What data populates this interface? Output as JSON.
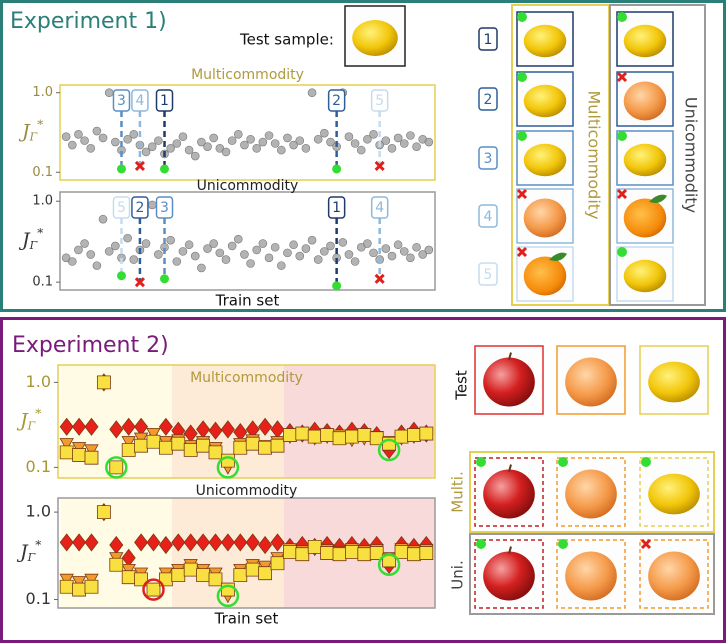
{
  "experiment1": {
    "title": "Experiment 1)",
    "test_label": "Test sample:",
    "ranks": [
      "1",
      "2",
      "3",
      "4",
      "5"
    ],
    "multi_label": "Multicommodity",
    "uni_label": "Unicommodity"
  },
  "experiment2": {
    "title": "Experiment 2)",
    "row_labels": [
      "Test",
      "Multi.",
      "Uni."
    ]
  },
  "chart_data": [
    {
      "type": "scatter",
      "title": "Multicommodity",
      "ylabel": {
        "main": "J",
        "sub": "Γ",
        "sup": "*"
      },
      "log_y": true,
      "xlim": [
        0,
        61
      ],
      "ylim": [
        0.08,
        1.25
      ],
      "yticks": [
        0.1,
        {
          "value": 1,
          "label": "1.0"
        }
      ],
      "frame_color": "#e6cf52",
      "title_color": "#b09a3c",
      "tick_color": "#9a8a40",
      "color": "#9a9a9a",
      "values": [
        0.28,
        0.22,
        0.3,
        0.25,
        0.2,
        0.33,
        0.27,
        1.0,
        0.24,
        0.19,
        0.26,
        0.3,
        0.22,
        0.18,
        0.21,
        0.25,
        0.17,
        0.2,
        0.23,
        0.28,
        0.19,
        0.16,
        0.24,
        0.21,
        0.27,
        0.2,
        0.18,
        0.25,
        0.3,
        0.22,
        0.26,
        0.2,
        0.24,
        0.29,
        0.23,
        0.19,
        0.27,
        0.22,
        0.25,
        0.2,
        1.0,
        0.26,
        0.31,
        0.24,
        0.21,
        1.0,
        0.28,
        0.23,
        0.19,
        0.26,
        0.3,
        0.22,
        0.25,
        0.2,
        0.27,
        0.23,
        0.29,
        0.21,
        0.26,
        0.24
      ],
      "annotations": [
        {
          "label": "3",
          "x": 10,
          "value": 0.11,
          "color": "#5a8fc4",
          "marker": "circle",
          "marker_color": "#33dd33"
        },
        {
          "label": "4",
          "x": 13,
          "value": 0.12,
          "color": "#8fb8dc",
          "marker": "cross",
          "marker_color": "#e0201a"
        },
        {
          "label": "1",
          "x": 17,
          "value": 0.11,
          "color": "#1f3a6b",
          "marker": "circle",
          "marker_color": "#33dd33"
        },
        {
          "label": "2",
          "x": 45,
          "value": 0.11,
          "color": "#2f5f9a",
          "marker": "circle",
          "marker_color": "#33dd33"
        },
        {
          "label": "5",
          "x": 52,
          "value": 0.12,
          "color": "#c5dcef",
          "marker": "cross",
          "marker_color": "#e0201a"
        }
      ]
    },
    {
      "type": "scatter",
      "title": "Unicommodity",
      "xlabel": "Train set",
      "ylabel": {
        "main": "J",
        "sub": "Γ",
        "sup": "*"
      },
      "log_y": true,
      "xlim": [
        0,
        61
      ],
      "ylim": [
        0.08,
        1.3
      ],
      "yticks": [
        0.1,
        {
          "value": 1,
          "label": "1.0"
        }
      ],
      "frame_color": "#9a9a9a",
      "title_color": "#222222",
      "tick_color": "#333333",
      "color": "#9a9a9a",
      "values": [
        0.2,
        0.18,
        0.25,
        0.3,
        0.22,
        0.16,
        0.6,
        0.24,
        0.28,
        0.2,
        0.35,
        0.19,
        0.25,
        0.3,
        0.9,
        0.22,
        0.27,
        0.33,
        0.18,
        0.24,
        0.29,
        0.21,
        0.15,
        0.26,
        0.3,
        0.23,
        0.19,
        0.28,
        0.34,
        0.22,
        0.17,
        0.25,
        0.3,
        0.2,
        0.27,
        0.16,
        0.23,
        0.29,
        0.21,
        0.26,
        0.33,
        0.19,
        0.24,
        0.28,
        0.2,
        0.31,
        0.22,
        0.18,
        0.27,
        0.3,
        0.23,
        0.19,
        0.26,
        0.21,
        0.29,
        0.24,
        0.2,
        0.27,
        0.22,
        0.25
      ],
      "annotations": [
        {
          "label": "5",
          "x": 10,
          "value": 0.12,
          "color": "#c5dcef",
          "marker": "circle",
          "marker_color": "#33dd33"
        },
        {
          "label": "2",
          "x": 13,
          "value": 0.1,
          "color": "#2f5f9a",
          "marker": "cross",
          "marker_color": "#e0201a"
        },
        {
          "label": "3",
          "x": 17,
          "value": 0.11,
          "color": "#5a8fc4",
          "marker": "circle",
          "marker_color": "#33dd33"
        },
        {
          "label": "1",
          "x": 45,
          "value": 0.09,
          "color": "#1f3a6b",
          "marker": "circle",
          "marker_color": "#33dd33"
        },
        {
          "label": "4",
          "x": 52,
          "value": 0.11,
          "color": "#8fb8dc",
          "marker": "cross",
          "marker_color": "#e0201a"
        }
      ]
    },
    {
      "type": "scatter",
      "title": "Multicommodity",
      "ylabel": {
        "main": "J",
        "sub": "Γ",
        "sup": "*"
      },
      "log_y": true,
      "xlim": [
        0.3,
        30.7
      ],
      "ylim": [
        0.075,
        1.6
      ],
      "yticks": [
        0.1,
        {
          "value": 1,
          "label": "1.0"
        }
      ],
      "frame_color": "#e6cf52",
      "title_color": "#b09a3c",
      "tick_color": "#a89830",
      "regions": [
        {
          "from": 0.5,
          "to": 9.5,
          "color": "#fffbe4"
        },
        {
          "from": 9.5,
          "to": 18.5,
          "color": "#fdebd8"
        },
        {
          "from": 18.5,
          "to": 30.7,
          "color": "#f9dada"
        }
      ],
      "series": [
        {
          "marker": "diamond",
          "color": "#e8201a",
          "values": [
            0.3,
            0.3,
            0.3,
            1.0,
            0.28,
            0.3,
            0.3,
            0.22,
            0.3,
            0.27,
            0.25,
            0.28,
            0.27,
            0.28,
            0.26,
            0.28,
            0.3,
            0.28,
            0.26,
            0.25,
            0.27,
            0.26,
            0.25,
            0.27,
            0.26,
            0.24,
            0.16,
            0.25,
            0.27,
            0.25
          ]
        },
        {
          "marker": "triangle",
          "color": "#f39a2c",
          "values": [
            0.19,
            0.17,
            0.16,
            1.0,
            0.1,
            0.2,
            0.22,
            0.25,
            0.2,
            0.21,
            0.18,
            0.2,
            0.17,
            0.1,
            0.19,
            0.21,
            0.18,
            0.2,
            0.23,
            0.24,
            0.22,
            0.23,
            0.24,
            0.21,
            0.22,
            0.23,
            0.2,
            0.22,
            0.23,
            0.24
          ]
        },
        {
          "marker": "square",
          "color": "#f7e040",
          "values": [
            0.15,
            0.14,
            0.13,
            1.0,
            0.1,
            0.16,
            0.18,
            0.2,
            0.17,
            0.19,
            0.16,
            0.18,
            0.15,
            0.12,
            0.17,
            0.19,
            0.17,
            0.18,
            0.24,
            0.25,
            0.23,
            0.24,
            0.22,
            0.23,
            0.24,
            0.22,
            0.19,
            0.23,
            0.24,
            0.25
          ]
        }
      ],
      "highlights": [
        {
          "series": 2,
          "index": 4,
          "color": "#33dd33"
        },
        {
          "series": 1,
          "index": 13,
          "color": "#33dd33"
        },
        {
          "series": 0,
          "index": 26,
          "color": "#33dd33"
        }
      ]
    },
    {
      "type": "scatter",
      "title": "Unicommodity",
      "xlabel": "Train set",
      "ylabel": {
        "main": "J",
        "sub": "Γ",
        "sup": "*"
      },
      "log_y": true,
      "xlim": [
        0.3,
        30.7
      ],
      "ylim": [
        0.08,
        1.45
      ],
      "yticks": [
        0.1,
        {
          "value": 1,
          "label": "1.0"
        }
      ],
      "frame_color": "#9a9a9a",
      "title_color": "#222222",
      "tick_color": "#333333",
      "regions": [
        {
          "from": 0.5,
          "to": 9.5,
          "color": "#fffbe4"
        },
        {
          "from": 9.5,
          "to": 18.5,
          "color": "#fdebd8"
        },
        {
          "from": 18.5,
          "to": 30.7,
          "color": "#f9dada"
        }
      ],
      "series": [
        {
          "marker": "diamond",
          "color": "#e8201a",
          "values": [
            0.45,
            0.45,
            0.45,
            1.0,
            0.42,
            0.3,
            0.45,
            0.45,
            0.42,
            0.45,
            0.45,
            0.45,
            0.45,
            0.45,
            0.45,
            0.45,
            0.42,
            0.45,
            0.4,
            0.42,
            0.4,
            0.42,
            0.4,
            0.42,
            0.4,
            0.42,
            0.25,
            0.42,
            0.4,
            0.42
          ]
        },
        {
          "marker": "triangle",
          "color": "#f39a2c",
          "values": [
            0.17,
            0.16,
            0.17,
            1.0,
            0.3,
            0.22,
            0.2,
            0.13,
            0.2,
            0.22,
            0.25,
            0.22,
            0.2,
            0.11,
            0.22,
            0.25,
            0.24,
            0.3,
            0.38,
            0.36,
            0.38,
            0.37,
            0.35,
            0.38,
            0.36,
            0.37,
            0.3,
            0.38,
            0.36,
            0.37
          ]
        },
        {
          "marker": "square",
          "color": "#f7e040",
          "values": [
            0.14,
            0.13,
            0.14,
            1.0,
            0.25,
            0.18,
            0.17,
            0.13,
            0.17,
            0.19,
            0.22,
            0.19,
            0.17,
            0.13,
            0.19,
            0.22,
            0.2,
            0.26,
            0.35,
            0.33,
            0.4,
            0.34,
            0.33,
            0.35,
            0.33,
            0.34,
            0.28,
            0.35,
            0.33,
            0.34
          ]
        }
      ],
      "highlights": [
        {
          "series": 2,
          "index": 7,
          "color": "#e0201a"
        },
        {
          "series": 1,
          "index": 13,
          "color": "#33dd33"
        },
        {
          "series": 0,
          "index": 26,
          "color": "#33dd33"
        }
      ]
    }
  ]
}
